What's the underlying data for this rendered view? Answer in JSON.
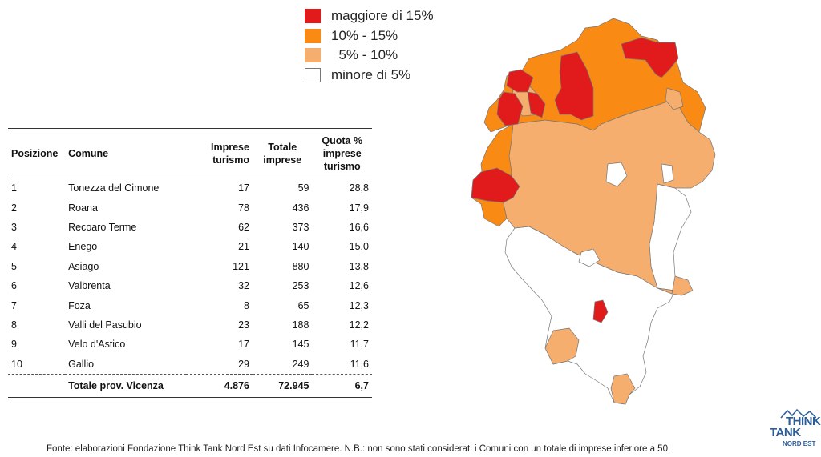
{
  "legend": [
    {
      "label": "maggiore di 15%",
      "color": "#e11b1b",
      "border": "#e11b1b"
    },
    {
      "label": "10% - 15%",
      "color": "#f98a14",
      "border": "#f98a14"
    },
    {
      "label": "  5% - 10%",
      "color": "#f6ae6e",
      "border": "#f6ae6e"
    },
    {
      "label": "minore di 5%",
      "color": "#ffffff",
      "border": "#777777"
    }
  ],
  "table": {
    "headers": {
      "posizione": "Posizione",
      "comune": "Comune",
      "imprese": "Imprese turismo",
      "totale": "Totale imprese",
      "quota": "Quota % imprese turismo"
    },
    "rows": [
      {
        "pos": "1",
        "comune": "Tonezza del Cimone",
        "imprese": "17",
        "totale": "59",
        "quota": "28,8"
      },
      {
        "pos": "2",
        "comune": "Roana",
        "imprese": "78",
        "totale": "436",
        "quota": "17,9"
      },
      {
        "pos": "3",
        "comune": "Recoaro Terme",
        "imprese": "62",
        "totale": "373",
        "quota": "16,6"
      },
      {
        "pos": "4",
        "comune": "Enego",
        "imprese": "21",
        "totale": "140",
        "quota": "15,0"
      },
      {
        "pos": "5",
        "comune": "Asiago",
        "imprese": "121",
        "totale": "880",
        "quota": "13,8"
      },
      {
        "pos": "6",
        "comune": "Valbrenta",
        "imprese": "32",
        "totale": "253",
        "quota": "12,6"
      },
      {
        "pos": "7",
        "comune": "Foza",
        "imprese": "8",
        "totale": "65",
        "quota": "12,3"
      },
      {
        "pos": "8",
        "comune": "Valli del Pasubio",
        "imprese": "23",
        "totale": "188",
        "quota": "12,2"
      },
      {
        "pos": "9",
        "comune": "Velo d'Astico",
        "imprese": "17",
        "totale": "145",
        "quota": "11,7"
      },
      {
        "pos": "10",
        "comune": "Gallio",
        "imprese": "29",
        "totale": "249",
        "quota": "11,6"
      }
    ],
    "total": {
      "label": "Totale prov. Vicenza",
      "imprese": "4.876",
      "totale": "72.945",
      "quota": "6,7"
    }
  },
  "footer": "Fonte: elaborazioni Fondazione Think Tank Nord Est su dati Infocamere. N.B.: non sono stati considerati i Comuni con un totale di imprese inferiore a 50.",
  "logo": {
    "line1": "THINK",
    "line2": "TANK",
    "line3": "NORD EST"
  },
  "map_colors": {
    "red": "#e11b1b",
    "orange": "#f98a14",
    "light": "#f6ae6e",
    "white": "#ffffff",
    "stroke": "#777777"
  }
}
